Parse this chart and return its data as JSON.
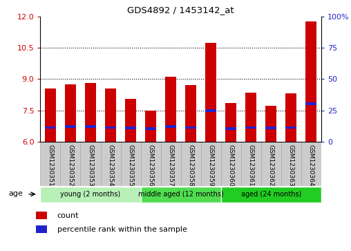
{
  "title": "GDS4892 / 1453142_at",
  "samples": [
    "GSM1230351",
    "GSM1230352",
    "GSM1230353",
    "GSM1230354",
    "GSM1230355",
    "GSM1230356",
    "GSM1230357",
    "GSM1230358",
    "GSM1230359",
    "GSM1230360",
    "GSM1230361",
    "GSM1230362",
    "GSM1230363",
    "GSM1230364"
  ],
  "count_values": [
    8.55,
    8.75,
    8.82,
    8.55,
    8.05,
    7.48,
    9.1,
    8.72,
    10.72,
    7.85,
    8.35,
    7.72,
    8.32,
    11.75
  ],
  "percentile_values": [
    6.68,
    6.72,
    6.72,
    6.68,
    6.65,
    6.62,
    6.72,
    6.68,
    7.5,
    6.62,
    6.68,
    6.65,
    6.68,
    7.82
  ],
  "y_min": 6,
  "y_max": 12,
  "y_ticks_left": [
    6,
    7.5,
    9,
    10.5,
    12
  ],
  "y_ticks_right_pct": [
    0,
    25,
    50,
    75,
    100
  ],
  "bar_color": "#cc0000",
  "percentile_color": "#2222cc",
  "blue_bar_height": 0.13,
  "groups": [
    {
      "label": "young (2 months)",
      "start": 0,
      "end": 5
    },
    {
      "label": "middle aged (12 months)",
      "start": 5,
      "end": 9
    },
    {
      "label": "aged (24 months)",
      "start": 9,
      "end": 14
    }
  ],
  "group_colors": [
    "#b8f0b8",
    "#50dd50",
    "#22cc22"
  ],
  "age_label": "age",
  "legend_count": "count",
  "legend_percentile": "percentile rank within the sample",
  "bar_width": 0.55,
  "axis_color_left": "#cc0000",
  "axis_color_right": "#2222cc",
  "sample_box_color": "#cccccc",
  "sample_box_edge": "#aaaaaa"
}
